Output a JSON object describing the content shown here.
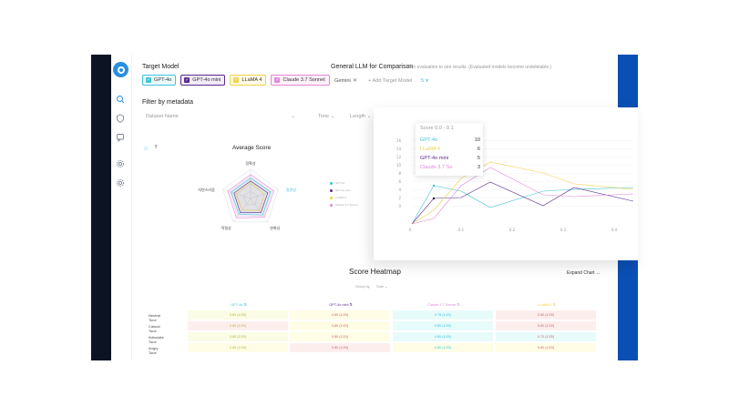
{
  "target_model": {
    "title": "Target Model",
    "chips": [
      {
        "label": "GPT-4o",
        "color": "#3fc3d6",
        "bg": "#eafafc"
      },
      {
        "label": "GPT-4o mini",
        "color": "#5a2a8c",
        "bg": "#f1eaf8"
      },
      {
        "label": "LLaMA 4",
        "color": "#f0d24a",
        "bg": "#fffbe6"
      },
      {
        "label": "Claude 3.7 Sonnet",
        "color": "#e18ad6",
        "bg": "#fcf0fa"
      }
    ]
  },
  "comparison": {
    "title": "General LLM for Comparison",
    "hint": "Run evaluation to see results. (Evaluated models become undeletable.)",
    "selected": "Gemini",
    "add_label": "Add Target Model",
    "badge": "5"
  },
  "filter": {
    "title": "Filter by metadata",
    "dataset_placeholder": "Dataset Name",
    "tone_label": "Tone",
    "length_label": "Length"
  },
  "radar": {
    "title": "Average Score",
    "axes": [
      "정확성",
      "일관성",
      "완화성",
      "적절성",
      "자연스러움"
    ],
    "legend": [
      "GPT-4o",
      "GPT-4o mini",
      "LLaMA 4",
      "Claude 3.7 Sonnet"
    ]
  },
  "line_chart": {
    "y_ticks": [
      "16",
      "14",
      "12",
      "10",
      "8",
      "6",
      "4",
      "2",
      "0"
    ],
    "x_ticks": [
      "0",
      "0.1",
      "0.2",
      "0.3",
      "0.4"
    ]
  },
  "tooltip": {
    "title": "Score 0.0 - 0.1",
    "rows": [
      {
        "name": "GPT-4o",
        "value": "10",
        "color": "#3fc3d6"
      },
      {
        "name": "LLaMA 4",
        "value": "6",
        "color": "#f0d24a"
      },
      {
        "name": "GPT-4o mini",
        "value": "5",
        "color": "#5a2a8c"
      },
      {
        "name": "Claude 3.7 So",
        "value": "3",
        "color": "#e18ad6"
      }
    ]
  },
  "heatmap": {
    "title": "Score Heatmap",
    "expand": "Expand Chart",
    "group_by_label": "Group by",
    "group_by_value": "Tone",
    "columns": [
      {
        "label": "GPT-4o",
        "color": "#3fc3d6"
      },
      {
        "label": "GPT-4o mini",
        "color": "#5a2a8c"
      },
      {
        "label": "Claude 3.7 Sonnet",
        "color": "#e18ad6"
      },
      {
        "label": "LLaMA 4",
        "color": "#f0d24a"
      }
    ],
    "rows": [
      {
        "label": "Neutral Tone",
        "cells": [
          "0.80 (1/20)",
          "0.80 (1/20)",
          "0.78 (1/20)",
          "0.80 (1/20)"
        ]
      },
      {
        "label": "Casual Tone",
        "cells": [
          "0.80 (1/20)",
          "0.80 (1/20)",
          "0.80 (1/20)",
          "0.80 (1/20)"
        ]
      },
      {
        "label": "Articulate Tone",
        "cells": [
          "0.80 (1/20)",
          "0.80 (1/20)",
          "0.80 (1/20)",
          "0.70 (1/20)"
        ]
      },
      {
        "label": "Angry Tone",
        "cells": [
          "0.80 (1/20)",
          "0.80 (1/20)",
          "0.80 (1/20)",
          "0.80 (1/20)"
        ]
      }
    ]
  }
}
